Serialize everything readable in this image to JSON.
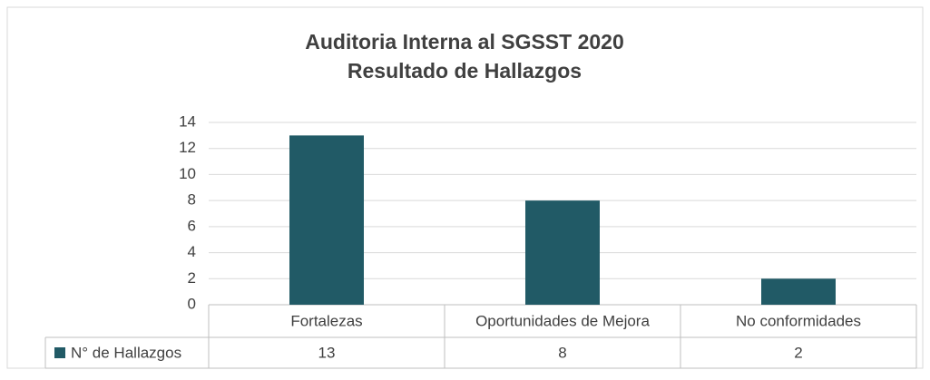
{
  "chart_data": {
    "type": "bar",
    "title": [
      "Auditoria Interna al SGSST 2020",
      "Resultado de Hallazgos"
    ],
    "categories": [
      "Fortalezas",
      "Oportunidades de Mejora",
      "No conformidades"
    ],
    "series": [
      {
        "name": "N° de Hallazgos",
        "color": "#215a66",
        "values": [
          13,
          8,
          2
        ]
      }
    ],
    "ylim": [
      0,
      14
    ],
    "yticks": [
      0,
      2,
      4,
      6,
      8,
      10,
      12,
      14
    ],
    "grid": true,
    "data_table": true
  }
}
